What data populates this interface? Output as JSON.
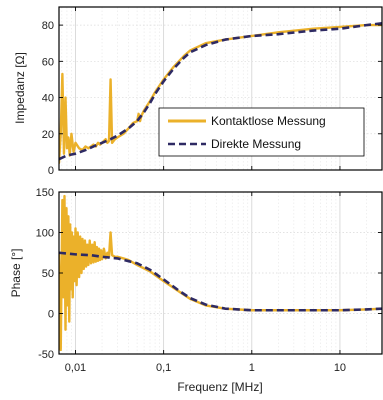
{
  "colors": {
    "contactless": "#EBB12A",
    "direct": "#2E2A63"
  },
  "chart_data": [
    {
      "type": "line",
      "ylabel": "Impedanz [Ω]",
      "xscale": "log",
      "xlim": [
        0.0065,
        30
      ],
      "ylim": [
        0,
        90
      ],
      "y_ticks": [
        0,
        20,
        40,
        60,
        80
      ],
      "y_tick_labels": [
        "0",
        "20",
        "40",
        "60",
        "80"
      ],
      "grid": true,
      "legend_position": "lower-right",
      "legend": [
        "Kontaktlose Messung",
        "Direkte Messung"
      ],
      "series": [
        {
          "name": "Kontaktlose Messung",
          "style": "solid",
          "x": [
            0.0065,
            0.0068,
            0.0071,
            0.0074,
            0.0077,
            0.008,
            0.0083,
            0.0086,
            0.009,
            0.0095,
            0.01,
            0.011,
            0.012,
            0.013,
            0.014,
            0.015,
            0.016,
            0.017,
            0.018,
            0.019,
            0.02,
            0.021,
            0.022,
            0.023,
            0.024,
            0.025,
            0.026,
            0.028,
            0.03,
            0.035,
            0.04,
            0.045,
            0.05,
            0.052,
            0.054,
            0.056,
            0.06,
            0.07,
            0.08,
            0.1,
            0.13,
            0.17,
            0.2,
            0.3,
            0.5,
            1,
            2,
            5,
            10,
            20,
            30
          ],
          "y": [
            4,
            20,
            53,
            9,
            40,
            12,
            18,
            8,
            20,
            10,
            15,
            12,
            11,
            13,
            12,
            13,
            14,
            13,
            15,
            14,
            15,
            16,
            17,
            15,
            16,
            50,
            15,
            17,
            18,
            20,
            23,
            26,
            27,
            31,
            27,
            30,
            33,
            38,
            43,
            50,
            57,
            63,
            66,
            70,
            72,
            74,
            76,
            78,
            79,
            80,
            80
          ]
        },
        {
          "name": "Direkte Messung",
          "style": "dashed",
          "x": [
            0.0065,
            0.008,
            0.01,
            0.013,
            0.016,
            0.02,
            0.025,
            0.03,
            0.04,
            0.05,
            0.06,
            0.07,
            0.08,
            0.1,
            0.13,
            0.17,
            0.2,
            0.3,
            0.5,
            1,
            2,
            5,
            10,
            20,
            30
          ],
          "y": [
            6,
            8,
            9,
            11,
            13,
            15,
            17,
            19,
            23,
            27,
            32,
            37,
            42,
            49,
            56,
            62,
            65,
            69,
            72,
            74,
            75,
            77,
            78,
            80,
            81
          ]
        }
      ]
    },
    {
      "type": "line",
      "ylabel": "Phase [°]",
      "xlabel": "Frequenz [MHz]",
      "xscale": "log",
      "xlim": [
        0.0065,
        30
      ],
      "ylim": [
        -50,
        150
      ],
      "y_ticks": [
        -50,
        0,
        50,
        100,
        150
      ],
      "y_tick_labels": [
        "-50",
        "0",
        "50",
        "100",
        "150"
      ],
      "x_ticks": [
        0.01,
        0.1,
        1,
        10
      ],
      "x_tick_labels": [
        "0,01",
        "0,1",
        "1",
        "10"
      ],
      "grid": true,
      "series": [
        {
          "name": "Kontaktlose Messung",
          "style": "solid",
          "x": [
            0.0065,
            0.0068,
            0.0071,
            0.0073,
            0.0075,
            0.0077,
            0.0079,
            0.0081,
            0.0083,
            0.0085,
            0.0087,
            0.0089,
            0.0091,
            0.0093,
            0.0095,
            0.0098,
            0.01,
            0.0103,
            0.0106,
            0.011,
            0.0113,
            0.0117,
            0.012,
            0.0124,
            0.0128,
            0.0132,
            0.0136,
            0.014,
            0.0145,
            0.015,
            0.0155,
            0.016,
            0.0165,
            0.017,
            0.0175,
            0.018,
            0.0185,
            0.019,
            0.0195,
            0.02,
            0.021,
            0.022,
            0.023,
            0.024,
            0.025,
            0.026,
            0.028,
            0.03,
            0.035,
            0.04,
            0.05,
            0.07,
            0.1,
            0.15,
            0.2,
            0.3,
            0.5,
            1,
            2,
            5,
            10,
            20,
            30
          ],
          "y": [
            75,
            -45,
            140,
            20,
            145,
            -20,
            130,
            10,
            120,
            -10,
            110,
            30,
            100,
            20,
            95,
            40,
            105,
            35,
            100,
            45,
            95,
            50,
            92,
            55,
            90,
            58,
            85,
            60,
            90,
            62,
            85,
            63,
            88,
            64,
            82,
            65,
            80,
            66,
            78,
            67,
            80,
            68,
            75,
            70,
            100,
            72,
            70,
            70,
            68,
            66,
            60,
            52,
            40,
            27,
            18,
            10,
            6,
            4,
            4,
            4,
            4,
            5,
            6
          ]
        },
        {
          "name": "Direkte Messung",
          "style": "dashed",
          "x": [
            0.0065,
            0.008,
            0.01,
            0.015,
            0.02,
            0.03,
            0.05,
            0.07,
            0.1,
            0.15,
            0.2,
            0.3,
            0.5,
            1,
            2,
            5,
            10,
            20,
            30
          ],
          "y": [
            75,
            74,
            73,
            72,
            70,
            68,
            62,
            54,
            42,
            28,
            19,
            11,
            6,
            4,
            4,
            4,
            4,
            5,
            6
          ]
        }
      ]
    }
  ]
}
